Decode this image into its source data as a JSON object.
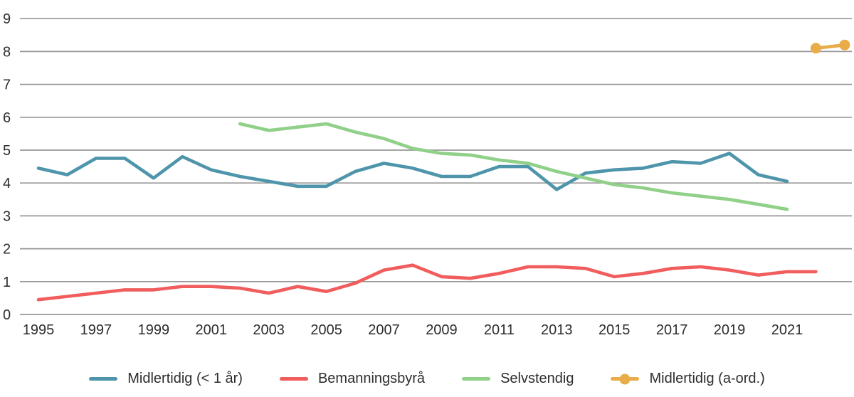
{
  "chart_data": {
    "type": "line",
    "title": "",
    "xlabel": "",
    "ylabel": "",
    "ylim": [
      0,
      9
    ],
    "x_range": [
      1995,
      2023
    ],
    "grid": "horizontal",
    "legend_position": "bottom",
    "gridline_color": "#979797",
    "text_color": "#2d2d2d",
    "y_ticks": [
      "0",
      "1",
      "2",
      "3",
      "4",
      "5",
      "6",
      "7",
      "8",
      "9"
    ],
    "x_ticks": [
      "1995",
      "1997",
      "1999",
      "2001",
      "2003",
      "2005",
      "2007",
      "2009",
      "2011",
      "2013",
      "2015",
      "2017",
      "2019",
      "2021"
    ],
    "series": [
      {
        "name": "Midlertidig (< 1 år)",
        "color": "#4E95AB",
        "marker": false,
        "years": [
          1995,
          1996,
          1997,
          1998,
          1999,
          2000,
          2001,
          2002,
          2003,
          2004,
          2005,
          2006,
          2007,
          2008,
          2009,
          2010,
          2011,
          2012,
          2013,
          2014,
          2015,
          2016,
          2017,
          2018,
          2019,
          2020,
          2021
        ],
        "values": [
          4.45,
          4.25,
          4.75,
          4.75,
          4.15,
          4.8,
          4.4,
          4.2,
          4.05,
          3.9,
          3.9,
          4.35,
          4.6,
          4.45,
          4.2,
          4.2,
          4.5,
          4.5,
          3.8,
          4.3,
          4.4,
          4.45,
          4.65,
          4.6,
          4.9,
          4.25,
          4.05
        ]
      },
      {
        "name": "Bemanningsbyrå",
        "color": "#F15D5D",
        "marker": false,
        "years": [
          1995,
          1996,
          1997,
          1998,
          1999,
          2000,
          2001,
          2002,
          2003,
          2004,
          2005,
          2006,
          2007,
          2008,
          2009,
          2010,
          2011,
          2012,
          2013,
          2014,
          2015,
          2016,
          2017,
          2018,
          2019,
          2020,
          2021,
          2022
        ],
        "values": [
          0.45,
          0.55,
          0.65,
          0.75,
          0.75,
          0.85,
          0.85,
          0.8,
          0.65,
          0.85,
          0.7,
          0.95,
          1.35,
          1.5,
          1.15,
          1.1,
          1.25,
          1.45,
          1.45,
          1.4,
          1.15,
          1.25,
          1.4,
          1.45,
          1.35,
          1.2,
          1.3,
          1.3
        ]
      },
      {
        "name": "Selvstendig",
        "color": "#90D089",
        "marker": false,
        "years": [
          2002,
          2003,
          2004,
          2005,
          2006,
          2007,
          2008,
          2009,
          2010,
          2011,
          2012,
          2013,
          2014,
          2015,
          2016,
          2017,
          2018,
          2019,
          2020,
          2021
        ],
        "values": [
          5.8,
          5.6,
          5.7,
          5.8,
          5.55,
          5.35,
          5.05,
          4.9,
          4.85,
          4.7,
          4.6,
          4.35,
          4.15,
          3.95,
          3.85,
          3.7,
          3.6,
          3.5,
          3.35,
          3.2
        ]
      },
      {
        "name": "Midlertidig (a-ord.)",
        "color": "#E8AC49",
        "marker": true,
        "years": [
          2022,
          2023
        ],
        "values": [
          8.1,
          8.2
        ]
      }
    ]
  }
}
